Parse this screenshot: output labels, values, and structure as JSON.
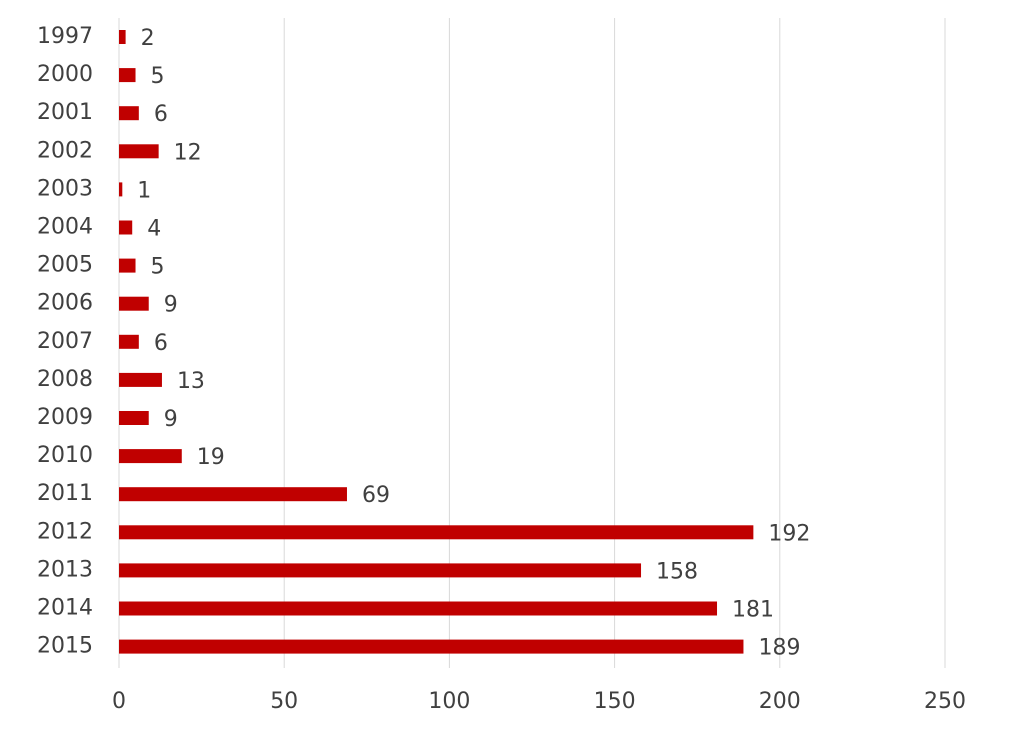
{
  "chart_data": {
    "type": "bar",
    "orientation": "horizontal",
    "categories": [
      "1997",
      "2000",
      "2001",
      "2002",
      "2003",
      "2004",
      "2005",
      "2006",
      "2007",
      "2008",
      "2009",
      "2010",
      "2011",
      "2012",
      "2013",
      "2014",
      "2015"
    ],
    "values": [
      2,
      5,
      6,
      12,
      1,
      4,
      5,
      9,
      6,
      13,
      9,
      19,
      69,
      192,
      158,
      181,
      189
    ],
    "title": "",
    "xlabel": "",
    "ylabel": "",
    "xlim": [
      0,
      250
    ],
    "xticks": [
      0,
      50,
      100,
      150,
      200,
      250
    ],
    "grid": "vertical",
    "legend": "none",
    "bar_color": "#c00000"
  }
}
